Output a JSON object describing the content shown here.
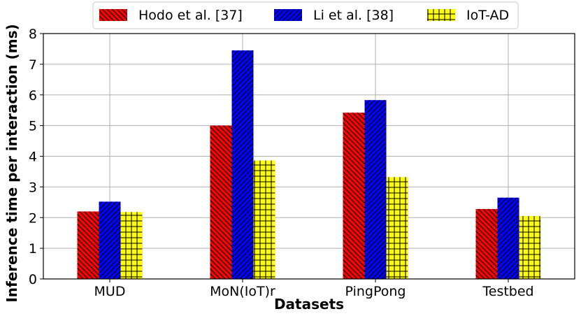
{
  "chart_data": {
    "type": "bar",
    "categories": [
      "MUD",
      "MoN(IoT)r",
      "PingPong",
      "Testbed"
    ],
    "series": [
      {
        "name": "Hodo et al. [37]",
        "values": [
          2.2,
          5.0,
          5.42,
          2.28
        ],
        "color": "#ff0000",
        "hatch": "backslash"
      },
      {
        "name": "Li et al. [38]",
        "values": [
          2.52,
          7.45,
          5.83,
          2.65
        ],
        "color": "#0000ff",
        "hatch": "slash"
      },
      {
        "name": "IoT-AD",
        "values": [
          2.18,
          3.86,
          3.32,
          2.05
        ],
        "color": "#ffff00",
        "hatch": "cross"
      }
    ],
    "xlabel": "Datasets",
    "ylabel": "Inference time per interaction (ms)",
    "ylim": [
      0,
      8
    ],
    "yticks": [
      0,
      1,
      2,
      3,
      4,
      5,
      6,
      7,
      8
    ],
    "grid": true,
    "legend_position": "top-center"
  }
}
